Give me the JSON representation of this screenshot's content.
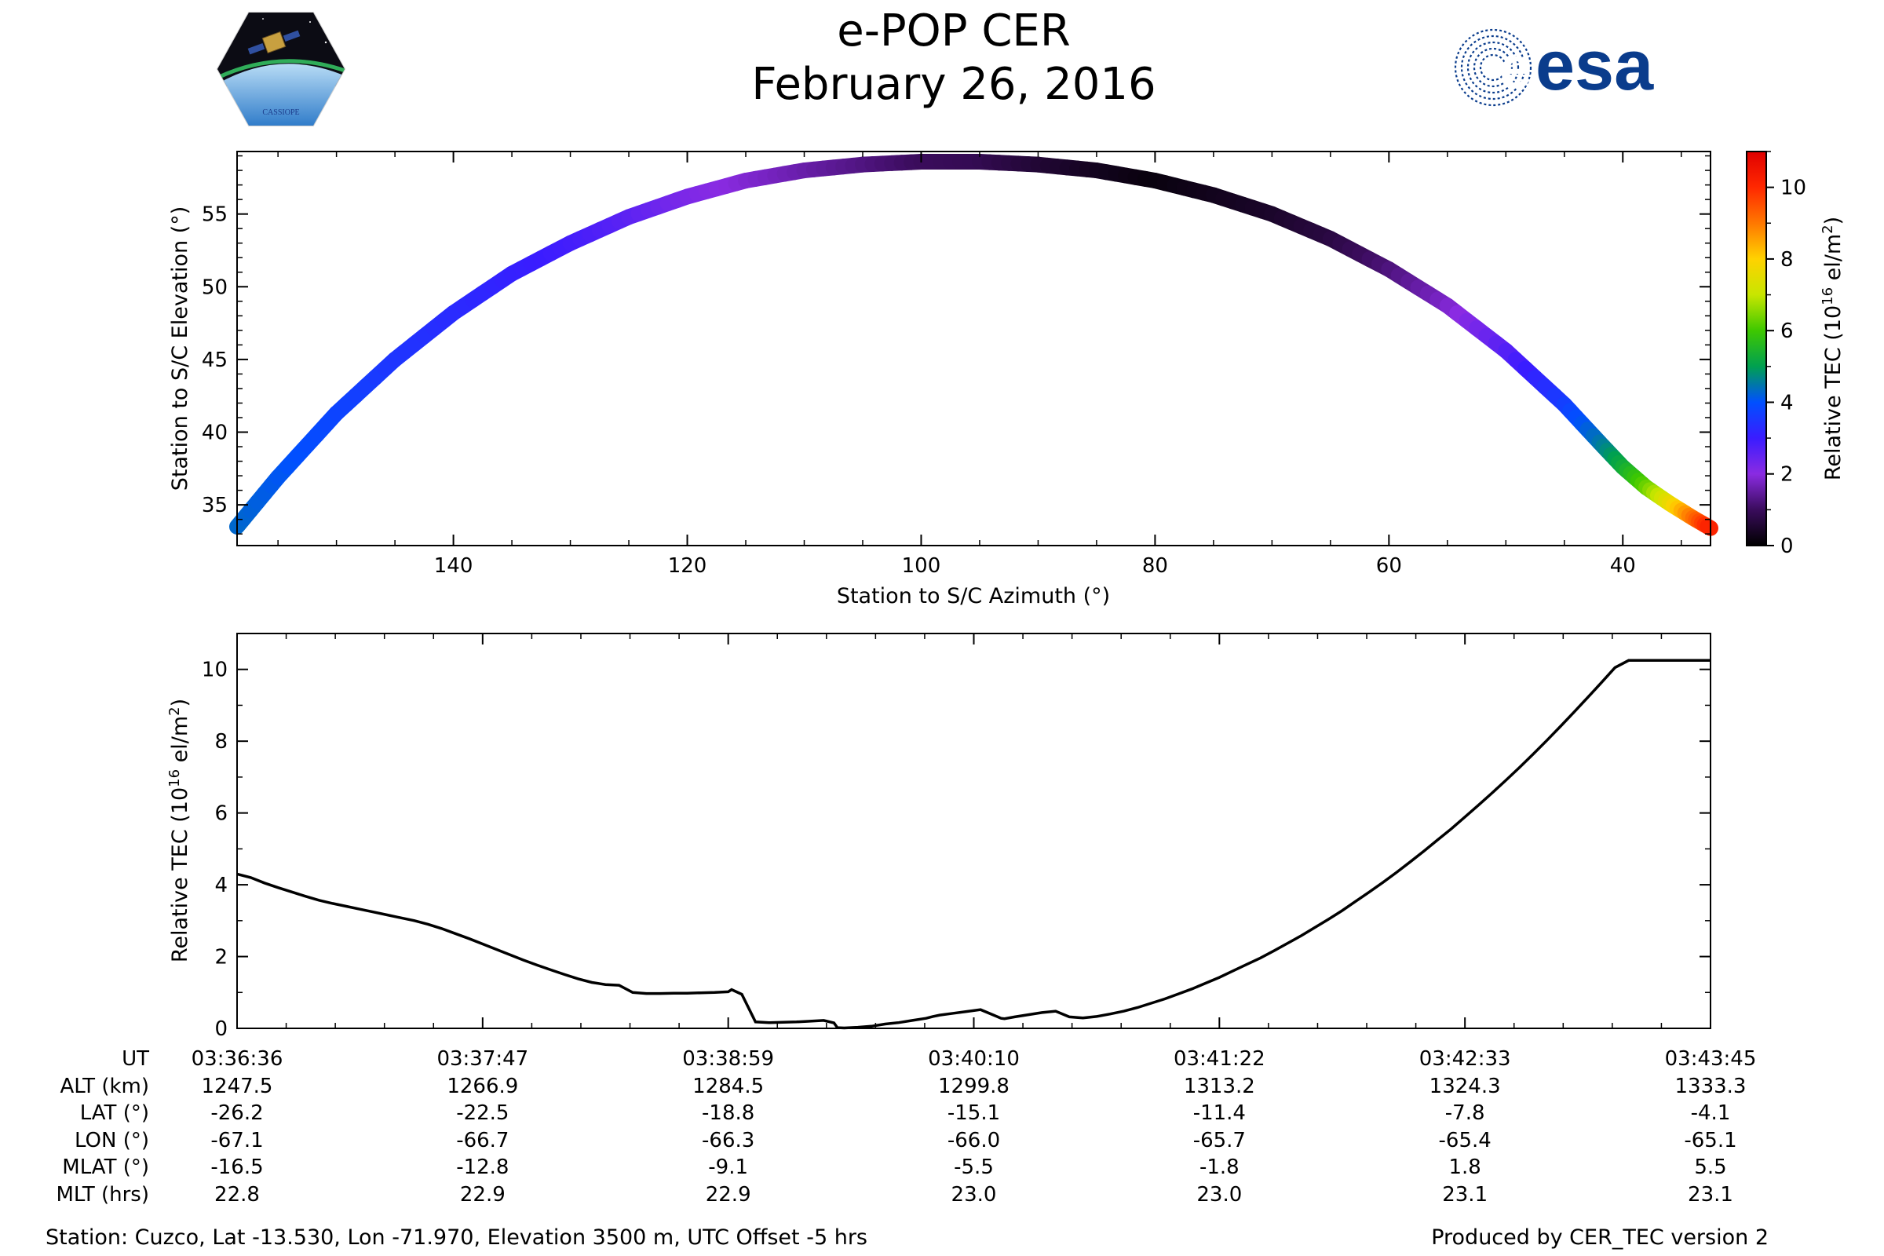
{
  "header": {
    "title": "e-POP CER",
    "date": "February 26, 2016",
    "left_logo_text": "CASSIOPE",
    "right_logo_text": "esa"
  },
  "chart_data": [
    {
      "type": "scatter",
      "title": "",
      "xlabel": "Station to S/C Azimuth (°)",
      "ylabel": "Station to S/C Elevation (°)",
      "xlim": [
        158.5,
        32.5
      ],
      "ylim": [
        32.2,
        59.3
      ],
      "x_ticks": [
        140,
        120,
        100,
        80,
        60,
        40
      ],
      "y_ticks": [
        35,
        40,
        45,
        50,
        55
      ],
      "colorbar": {
        "label": "Relative TEC (10^16 el/m^2)",
        "range": [
          0,
          11
        ],
        "ticks": [
          0,
          2,
          4,
          6,
          8,
          10
        ],
        "colormap": "gnuplot-rainbow",
        "colors": [
          "#000000",
          "#3a0c5c",
          "#8a2be2",
          "#3a1cff",
          "#0050ff",
          "#00a050",
          "#3ec800",
          "#c8e600",
          "#ffd200",
          "#ff7800",
          "#ff2800",
          "#e00000"
        ]
      },
      "grid": false,
      "track_azimuth": [
        158.5,
        155,
        150,
        145,
        140,
        135,
        130,
        125,
        120,
        115,
        110,
        105,
        100,
        95,
        90,
        85,
        80,
        75,
        70,
        65,
        60,
        55,
        50,
        45,
        42,
        40,
        38,
        36,
        34,
        32.5
      ],
      "track_elevation": [
        33.5,
        36.9,
        41.3,
        45.0,
        48.2,
        50.9,
        53.0,
        54.8,
        56.2,
        57.3,
        58.0,
        58.4,
        58.6,
        58.6,
        58.4,
        58.0,
        57.3,
        56.3,
        55.0,
        53.3,
        51.2,
        48.7,
        45.6,
        41.9,
        39.3,
        37.6,
        36.2,
        35.1,
        34.1,
        33.4
      ],
      "track_tec": [
        4.3,
        4.1,
        3.8,
        3.5,
        3.3,
        3.1,
        2.9,
        2.6,
        2.2,
        1.9,
        1.6,
        1.3,
        1.0,
        0.9,
        0.6,
        0.35,
        0.15,
        0.3,
        0.45,
        0.7,
        1.2,
        1.8,
        2.6,
        3.6,
        4.4,
        5.2,
        6.2,
        7.5,
        9.0,
        10.2
      ]
    },
    {
      "type": "line",
      "title": "",
      "xlabel": "",
      "ylabel": "Relative TEC (10^16 el/m^2)",
      "ylim": [
        0,
        11
      ],
      "y_ticks": [
        0,
        2,
        4,
        6,
        8,
        10
      ],
      "series": [
        {
          "t": [
            0,
            8,
            16,
            24,
            32,
            40,
            48,
            56,
            64,
            72,
            80,
            88,
            96,
            104,
            112,
            120,
            128,
            136,
            144,
            152,
            160,
            168,
            176,
            184,
            192,
            200,
            208,
            216,
            224,
            232,
            240,
            248,
            256,
            264,
            272,
            280,
            288,
            290,
            296,
            304,
            312,
            320,
            328,
            336,
            344,
            350,
            352,
            356,
            364,
            372,
            380,
            388,
            396,
            404,
            408,
            412,
            420,
            428,
            436,
            444,
            448,
            450,
            456,
            464,
            472,
            480,
            488,
            496,
            504,
            512,
            520,
            528,
            536,
            544,
            552,
            560,
            568,
            576,
            584,
            592,
            600,
            608,
            616,
            624,
            632,
            640,
            648,
            656,
            664,
            672,
            680,
            688,
            696,
            704,
            712,
            720,
            728,
            736,
            744,
            752,
            760,
            768,
            776,
            784,
            792,
            800,
            808,
            816,
            824,
            832,
            840,
            848,
            856,
            864
          ],
          "values": [
            4.3,
            4.2,
            4.05,
            3.92,
            3.8,
            3.68,
            3.57,
            3.48,
            3.4,
            3.32,
            3.24,
            3.16,
            3.08,
            3.0,
            2.9,
            2.78,
            2.64,
            2.5,
            2.35,
            2.2,
            2.05,
            1.9,
            1.76,
            1.63,
            1.5,
            1.38,
            1.28,
            1.22,
            1.2,
            1.0,
            0.97,
            0.97,
            0.98,
            0.98,
            0.99,
            1.0,
            1.02,
            1.08,
            0.95,
            0.18,
            0.16,
            0.17,
            0.18,
            0.2,
            0.22,
            0.15,
            0.02,
            0.01,
            0.03,
            0.06,
            0.12,
            0.16,
            0.22,
            0.28,
            0.33,
            0.37,
            0.42,
            0.47,
            0.52,
            0.36,
            0.28,
            0.27,
            0.32,
            0.38,
            0.44,
            0.48,
            0.32,
            0.29,
            0.33,
            0.4,
            0.48,
            0.58,
            0.7,
            0.82,
            0.96,
            1.1,
            1.26,
            1.42,
            1.6,
            1.78,
            1.96,
            2.16,
            2.37,
            2.58,
            2.81,
            3.04,
            3.28,
            3.54,
            3.8,
            4.07,
            4.35,
            4.64,
            4.94,
            5.25,
            5.56,
            5.89,
            6.22,
            6.56,
            6.91,
            7.27,
            7.64,
            8.02,
            8.41,
            8.81,
            9.22,
            9.63,
            10.05,
            10.25,
            10.25,
            10.25,
            10.25,
            10.25,
            10.25,
            10.25
          ],
          "t_range": [
            0,
            429
          ]
        }
      ]
    }
  ],
  "time_table": {
    "row_labels": [
      "UT",
      "ALT (km)",
      "LAT (°)",
      "LON (°)",
      "MLAT (°)",
      "MLT (hrs)"
    ],
    "columns": [
      [
        "03:36:36",
        "1247.5",
        "-26.2",
        "-67.1",
        "-16.5",
        "22.8"
      ],
      [
        "03:37:47",
        "1266.9",
        "-22.5",
        "-66.7",
        "-12.8",
        "22.9"
      ],
      [
        "03:38:59",
        "1284.5",
        "-18.8",
        "-66.3",
        "-9.1",
        "22.9"
      ],
      [
        "03:40:10",
        "1299.8",
        "-15.1",
        "-66.0",
        "-5.5",
        "23.0"
      ],
      [
        "03:41:22",
        "1313.2",
        "-11.4",
        "-65.7",
        "-1.8",
        "23.0"
      ],
      [
        "03:42:33",
        "1324.3",
        "-7.8",
        "-65.4",
        "1.8",
        "23.1"
      ],
      [
        "03:43:45",
        "1333.3",
        "-4.1",
        "-65.1",
        "5.5",
        "23.1"
      ]
    ]
  },
  "footer": {
    "station": "Station: Cuzco, Lat -13.530, Lon -71.970, Elevation 3500 m, UTC Offset -5 hrs",
    "produced_by": "Produced by CER_TEC version 2"
  }
}
